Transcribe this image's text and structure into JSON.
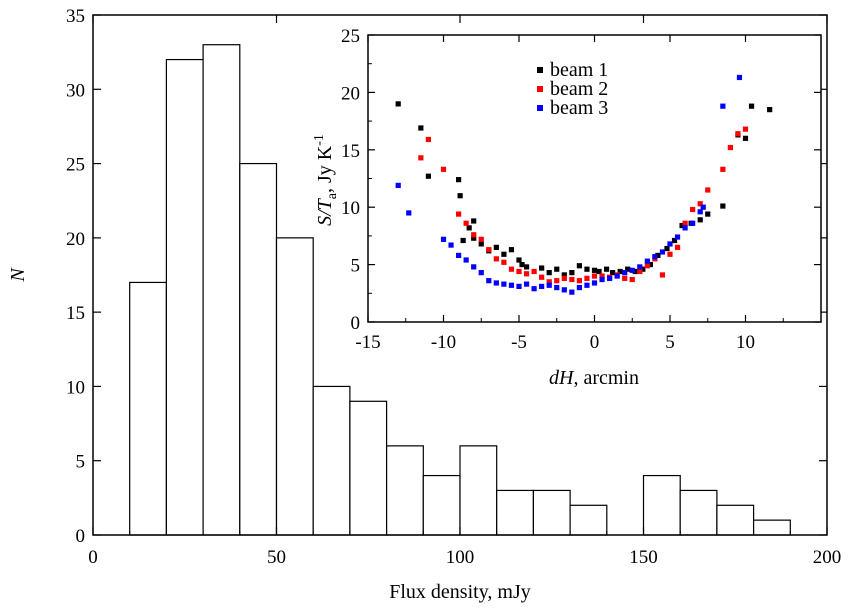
{
  "chart_data": [
    {
      "type": "bar",
      "subtype": "histogram",
      "xlabel": "Flux density, mJy",
      "ylabel": "N",
      "xlim": [
        0,
        200
      ],
      "ylim": [
        0,
        35
      ],
      "xticks": [
        0,
        50,
        100,
        150,
        200
      ],
      "yticks": [
        0,
        5,
        10,
        15,
        20,
        25,
        30,
        35
      ],
      "bin_width": 10,
      "bins": [
        {
          "x0": 10,
          "x1": 20,
          "value": 17
        },
        {
          "x0": 20,
          "x1": 30,
          "value": 32
        },
        {
          "x0": 30,
          "x1": 40,
          "value": 33
        },
        {
          "x0": 40,
          "x1": 50,
          "value": 25
        },
        {
          "x0": 50,
          "x1": 60,
          "value": 20
        },
        {
          "x0": 60,
          "x1": 70,
          "value": 10
        },
        {
          "x0": 70,
          "x1": 80,
          "value": 9
        },
        {
          "x0": 80,
          "x1": 90,
          "value": 6
        },
        {
          "x0": 90,
          "x1": 100,
          "value": 4
        },
        {
          "x0": 100,
          "x1": 110,
          "value": 6
        },
        {
          "x0": 110,
          "x1": 120,
          "value": 3
        },
        {
          "x0": 120,
          "x1": 130,
          "value": 3
        },
        {
          "x0": 130,
          "x1": 140,
          "value": 2
        },
        {
          "x0": 150,
          "x1": 160,
          "value": 4
        },
        {
          "x0": 160,
          "x1": 170,
          "value": 3
        },
        {
          "x0": 170,
          "x1": 180,
          "value": 2
        },
        {
          "x0": 180,
          "x1": 190,
          "value": 1
        }
      ],
      "grid": false,
      "colors": {
        "fill": "#ffffff",
        "stroke": "#000000"
      }
    },
    {
      "type": "scatter",
      "placement": "inset, upper right",
      "xlabel_italic": "dH",
      "xlabel_rest": ", arcmin",
      "ylabel_italic": "S/T",
      "ylabel_sub": "a",
      "ylabel_rest": ", Jy K",
      "ylabel_sup": "-1",
      "xlim": [
        -15,
        15
      ],
      "ylim": [
        0,
        25
      ],
      "xticks": [
        -15,
        -10,
        -5,
        0,
        5,
        10
      ],
      "yticks": [
        0,
        5,
        10,
        15,
        20,
        25
      ],
      "grid": false,
      "legend_position": "top-left",
      "series": [
        {
          "name": "beam 1",
          "color": "#000000",
          "points": [
            [
              -13,
              19
            ],
            [
              -11.5,
              16.9
            ],
            [
              -11,
              12.7
            ],
            [
              -9,
              12.4
            ],
            [
              -8.9,
              11
            ],
            [
              -8,
              8.8
            ],
            [
              -8.3,
              8.2
            ],
            [
              -8.7,
              7.1
            ],
            [
              -8,
              7.3
            ],
            [
              -7.5,
              6.8
            ],
            [
              -7,
              6.2
            ],
            [
              -6.5,
              6.5
            ],
            [
              -6,
              5.9
            ],
            [
              -5.5,
              6.3
            ],
            [
              -5,
              5.4
            ],
            [
              -4.8,
              5
            ],
            [
              -4.5,
              4.8
            ],
            [
              -3.5,
              4.7
            ],
            [
              -3,
              4.3
            ],
            [
              -2.5,
              4.6
            ],
            [
              -2,
              4.1
            ],
            [
              -1.5,
              4.3
            ],
            [
              -1,
              4.9
            ],
            [
              -0.5,
              4.6
            ],
            [
              0,
              4.5
            ],
            [
              0.3,
              4.4
            ],
            [
              0.8,
              4.6
            ],
            [
              1.2,
              4.3
            ],
            [
              1.7,
              4.4
            ],
            [
              2.2,
              4.6
            ],
            [
              2.7,
              4.4
            ],
            [
              3.2,
              4.6
            ],
            [
              3.7,
              5
            ],
            [
              4.2,
              5.8
            ],
            [
              4.8,
              6.4
            ],
            [
              5.3,
              7.1
            ],
            [
              5.8,
              8.4
            ],
            [
              6.4,
              8.6
            ],
            [
              7,
              8.9
            ],
            [
              7.5,
              9.4
            ],
            [
              8.5,
              10.1
            ],
            [
              9.5,
              16.3
            ],
            [
              10,
              16
            ],
            [
              10.4,
              18.8
            ],
            [
              11.6,
              18.5
            ]
          ]
        },
        {
          "name": "beam 2",
          "color": "#ff0000",
          "points": [
            [
              -11.5,
              14.3
            ],
            [
              -11,
              15.9
            ],
            [
              -10,
              13.3
            ],
            [
              -9,
              9.4
            ],
            [
              -8.5,
              8.6
            ],
            [
              -8,
              7.6
            ],
            [
              -7.5,
              7.2
            ],
            [
              -7,
              6.3
            ],
            [
              -6.5,
              5.5
            ],
            [
              -6,
              5.2
            ],
            [
              -5.5,
              4.6
            ],
            [
              -5,
              4.4
            ],
            [
              -4.5,
              4.2
            ],
            [
              -4,
              4.4
            ],
            [
              -3.5,
              3.9
            ],
            [
              -3,
              3.5
            ],
            [
              -2.5,
              3.6
            ],
            [
              -2,
              3.8
            ],
            [
              -1.5,
              3.7
            ],
            [
              -1,
              3.6
            ],
            [
              -0.5,
              3.8
            ],
            [
              0,
              4
            ],
            [
              0.5,
              4
            ],
            [
              1,
              3.9
            ],
            [
              1.5,
              4.1
            ],
            [
              2,
              3.8
            ],
            [
              2.5,
              3.7
            ],
            [
              3,
              4.4
            ],
            [
              3.5,
              4.9
            ],
            [
              4,
              5.5
            ],
            [
              4.5,
              4.1
            ],
            [
              5,
              5.9
            ],
            [
              5.5,
              6.5
            ],
            [
              6,
              8.6
            ],
            [
              6.5,
              9.8
            ],
            [
              7,
              10.3
            ],
            [
              7.5,
              11.5
            ],
            [
              8.5,
              13.3
            ],
            [
              9,
              15.2
            ],
            [
              9.5,
              16.4
            ],
            [
              10,
              16.8
            ]
          ]
        },
        {
          "name": "beam 3",
          "color": "#0000ff",
          "points": [
            [
              -13,
              11.9
            ],
            [
              -12.3,
              9.5
            ],
            [
              -10,
              7.2
            ],
            [
              -9.5,
              6.7
            ],
            [
              -9,
              5.8
            ],
            [
              -8.5,
              5.4
            ],
            [
              -8,
              4.8
            ],
            [
              -7.5,
              4.3
            ],
            [
              -7,
              3.6
            ],
            [
              -6.5,
              3.4
            ],
            [
              -6,
              3.3
            ],
            [
              -5.5,
              3.2
            ],
            [
              -5,
              3.1
            ],
            [
              -4.5,
              3.3
            ],
            [
              -4,
              2.9
            ],
            [
              -3.5,
              3.1
            ],
            [
              -3,
              3.2
            ],
            [
              -2.5,
              3
            ],
            [
              -2,
              2.8
            ],
            [
              -1.5,
              2.6
            ],
            [
              -1,
              3
            ],
            [
              -0.5,
              3.2
            ],
            [
              0,
              3.4
            ],
            [
              0.5,
              3.7
            ],
            [
              1,
              3.8
            ],
            [
              1.5,
              4
            ],
            [
              2,
              4.3
            ],
            [
              2.5,
              4.5
            ],
            [
              3,
              4.8
            ],
            [
              3.5,
              5.3
            ],
            [
              4,
              5.7
            ],
            [
              4.5,
              6.1
            ],
            [
              5,
              6.8
            ],
            [
              5.5,
              7.4
            ],
            [
              6,
              8.2
            ],
            [
              6.5,
              8.6
            ],
            [
              7,
              9.6
            ],
            [
              7.2,
              10
            ],
            [
              8.5,
              18.8
            ],
            [
              9.6,
              21.3
            ]
          ]
        }
      ]
    }
  ]
}
